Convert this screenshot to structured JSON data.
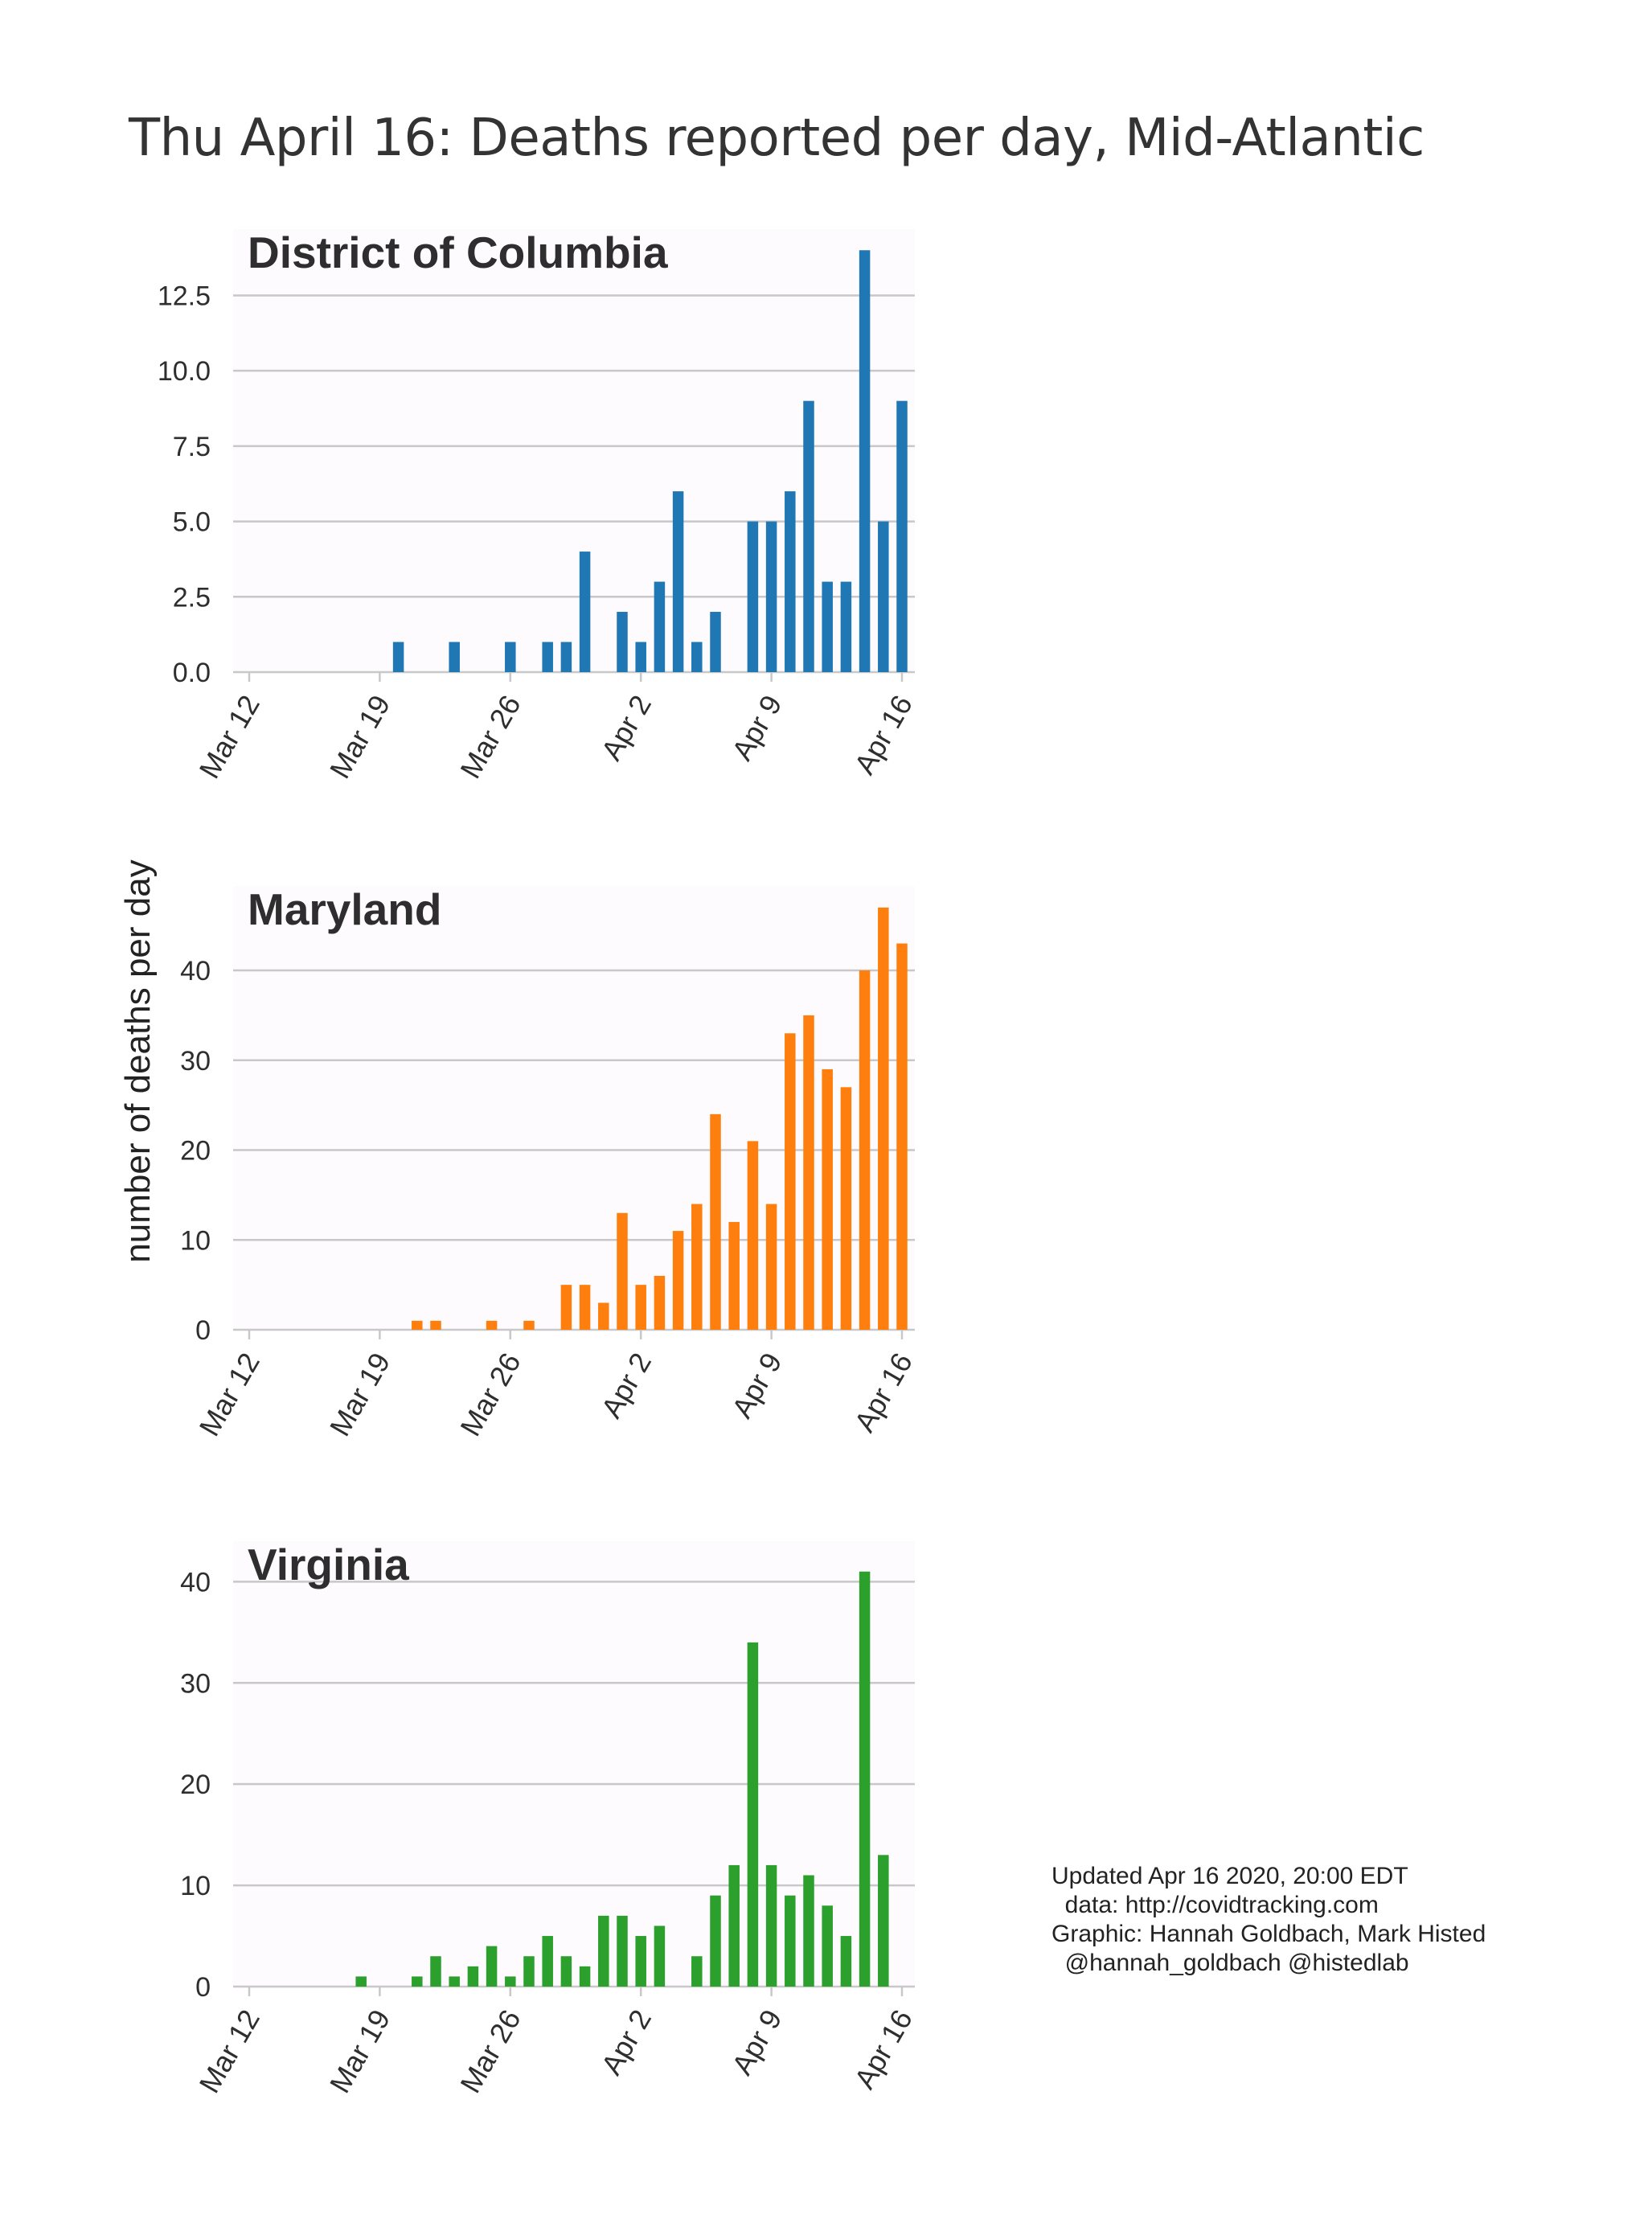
{
  "title": "Thu April 16: Deaths reported per day, Mid-Atlantic",
  "credits": [
    "Updated Apr 16 2020, 20:00 EDT",
    "  data: http://covidtracking.com",
    "Graphic: Hannah Goldbach, Mark Histed",
    "  @hannah_goldbach @histedlab"
  ],
  "ylabel": "number of deaths per day",
  "colors": {
    "plot_bg": "#fdfbfd",
    "grid": "#c8c8c8",
    "text": "#2e2e2e"
  },
  "chart_data": [
    {
      "type": "bar",
      "title": "District of Columbia",
      "color": "#1f77b4",
      "x_start": "Mar 12",
      "x_tick_labels": [
        "Mar 12",
        "Mar 19",
        "Mar 26",
        "Apr 2",
        "Apr 9",
        "Apr 16"
      ],
      "y_ticks": [
        "0.0",
        "2.5",
        "5.0",
        "7.5",
        "10.0",
        "12.5"
      ],
      "y_tick_values": [
        0,
        2.5,
        5,
        7.5,
        10,
        12.5
      ],
      "ylim": [
        0,
        14.7
      ],
      "values": [
        0,
        0,
        0,
        0,
        0,
        0,
        0,
        0,
        1,
        0,
        0,
        1,
        0,
        0,
        1,
        0,
        1,
        1,
        4,
        0,
        2,
        1,
        3,
        6,
        1,
        2,
        0,
        5,
        5,
        6,
        9,
        3,
        3,
        14,
        5,
        9
      ]
    },
    {
      "type": "bar",
      "title": "Maryland",
      "color": "#ff7f0e",
      "x_start": "Mar 12",
      "x_tick_labels": [
        "Mar 12",
        "Mar 19",
        "Mar 26",
        "Apr 2",
        "Apr 9",
        "Apr 16"
      ],
      "y_ticks": [
        "0",
        "10",
        "20",
        "30",
        "40"
      ],
      "y_tick_values": [
        0,
        10,
        20,
        30,
        40
      ],
      "ylim": [
        0,
        49.4
      ],
      "values": [
        0,
        0,
        0,
        0,
        0,
        0,
        0,
        0,
        0,
        1,
        1,
        0,
        0,
        1,
        0,
        1,
        0,
        5,
        5,
        3,
        13,
        5,
        6,
        11,
        14,
        24,
        12,
        21,
        14,
        33,
        35,
        29,
        27,
        40,
        47,
        43
      ]
    },
    {
      "type": "bar",
      "title": "Virginia",
      "color": "#2ca02c",
      "x_start": "Mar 12",
      "x_tick_labels": [
        "Mar 12",
        "Mar 19",
        "Mar 26",
        "Apr 2",
        "Apr 9",
        "Apr 16"
      ],
      "y_ticks": [
        "0",
        "10",
        "20",
        "30",
        "40"
      ],
      "y_tick_values": [
        0,
        10,
        20,
        30,
        40
      ],
      "ylim": [
        0,
        44
      ],
      "values": [
        0,
        0,
        0,
        0,
        0,
        0,
        1,
        0,
        0,
        1,
        3,
        1,
        2,
        4,
        1,
        3,
        5,
        3,
        2,
        7,
        7,
        5,
        6,
        0,
        3,
        9,
        12,
        34,
        12,
        9,
        11,
        8,
        5,
        41,
        13
      ]
    }
  ]
}
